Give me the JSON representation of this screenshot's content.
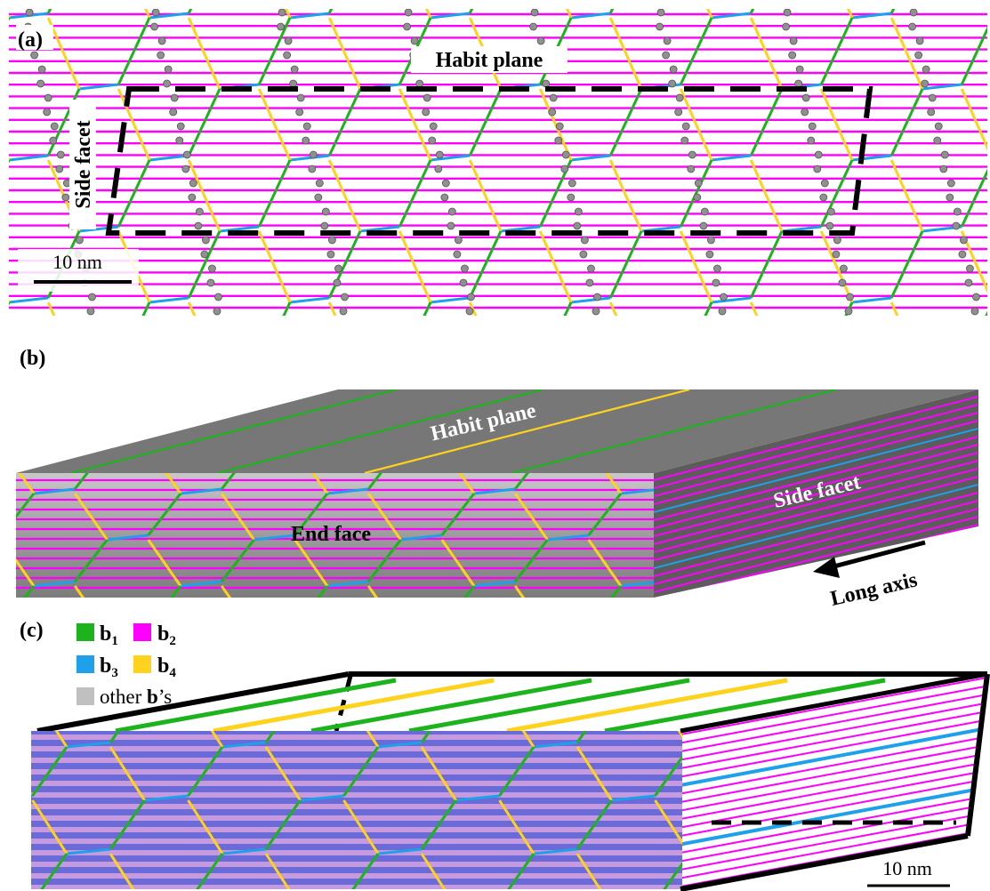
{
  "panels": {
    "a": {
      "label": "(a)",
      "habit_plane": "Habit plane",
      "side_facet": "Side facet",
      "scale_bar": "10 nm"
    },
    "b": {
      "label": "(b)",
      "habit_plane": "Habit plane",
      "side_facet": "Side facet",
      "end_face": "End face",
      "long_axis": "Long axis"
    },
    "c": {
      "label": "(c)",
      "scale_bar": "10 nm"
    }
  },
  "legend": {
    "items": [
      {
        "symbol": "b",
        "subscript": "1",
        "color": "#1db31d"
      },
      {
        "symbol": "b",
        "subscript": "2",
        "color": "#ff00ff"
      },
      {
        "symbol": "b",
        "subscript": "3",
        "color": "#1ea0ea"
      },
      {
        "symbol": "b",
        "subscript": "4",
        "color": "#ffd21e"
      }
    ],
    "other": {
      "prefix": "other ",
      "symbol": "b",
      "suffix": "’s",
      "color": "#c0c0c0"
    }
  },
  "colors": {
    "b1": "#1db31d",
    "b2": "#ff00ff",
    "b3": "#1ea0ea",
    "b4": "#ffd21e",
    "other": "#c0c0c0",
    "atom": "#909090",
    "slab_top": "#7a7a7a",
    "slab_side": "#5e5e5e",
    "slab_front": "#a0a0a0",
    "atoms_blue": "#5a5ad0",
    "atoms_pink": "#d0a0e0"
  }
}
